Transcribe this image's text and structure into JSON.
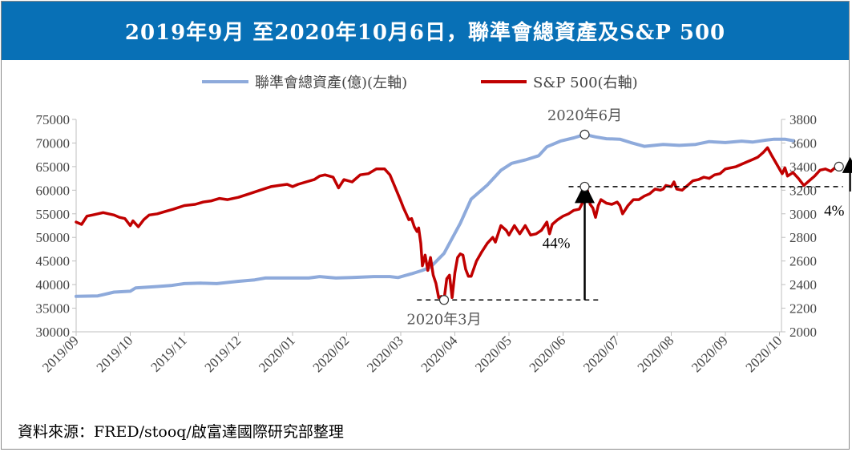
{
  "title": "2019年9月 至2020年10月6日，聯準會總資產及S&P 500",
  "source": "資料來源：FRED/stooq/啟富達國際研究部整理",
  "colors": {
    "title_bg": "#0870b6",
    "fed": "#8eaadb",
    "sp": "#c00000"
  },
  "chart_data": {
    "type": "line",
    "x_tick_labels": [
      "2019/09",
      "2019/10",
      "2019/11",
      "2019/12",
      "2020/01",
      "2020/02",
      "2020/03",
      "2020/04",
      "2020/05",
      "2020/06",
      "2020/07",
      "2020/08",
      "2020/09",
      "2020/10"
    ],
    "y_left": {
      "min": 30000,
      "max": 75000,
      "step": 5000,
      "ticks": [
        "75000",
        "70000",
        "65000",
        "60000",
        "55000",
        "50000",
        "45000",
        "40000",
        "35000",
        "30000"
      ]
    },
    "y_right": {
      "min": 2000,
      "max": 3800,
      "step": 200,
      "ticks": [
        "3800",
        "3600",
        "3400",
        "3200",
        "3000",
        "2800",
        "2600",
        "2400",
        "2200",
        "2000"
      ]
    },
    "legend": [
      "聯準會總資產(億)(左軸)",
      "S&P 500(右軸)"
    ],
    "series": [
      {
        "name": "聯準會總資產(億)(左軸)",
        "axis": "left",
        "points": [
          [
            0,
            37500
          ],
          [
            0.4,
            37600
          ],
          [
            0.7,
            38400
          ],
          [
            1.0,
            38600
          ],
          [
            1.1,
            39300
          ],
          [
            1.5,
            39600
          ],
          [
            1.75,
            39800
          ],
          [
            2.0,
            40200
          ],
          [
            2.3,
            40300
          ],
          [
            2.6,
            40200
          ],
          [
            3.0,
            40700
          ],
          [
            3.3,
            41000
          ],
          [
            3.5,
            41400
          ],
          [
            3.9,
            41400
          ],
          [
            4.3,
            41400
          ],
          [
            4.5,
            41700
          ],
          [
            4.8,
            41400
          ],
          [
            5.1,
            41500
          ],
          [
            5.5,
            41700
          ],
          [
            5.8,
            41700
          ],
          [
            5.95,
            41500
          ],
          [
            6.2,
            42300
          ],
          [
            6.4,
            43000
          ],
          [
            6.55,
            43700
          ],
          [
            6.8,
            46600
          ],
          [
            7.1,
            53000
          ],
          [
            7.3,
            58100
          ],
          [
            7.6,
            61100
          ],
          [
            7.85,
            64200
          ],
          [
            8.05,
            65700
          ],
          [
            8.3,
            66400
          ],
          [
            8.55,
            67300
          ],
          [
            8.7,
            69200
          ],
          [
            8.95,
            70400
          ],
          [
            9.2,
            71100
          ],
          [
            9.4,
            71800
          ],
          [
            9.6,
            71300
          ],
          [
            9.8,
            70900
          ],
          [
            10.05,
            70800
          ],
          [
            10.25,
            70100
          ],
          [
            10.5,
            69300
          ],
          [
            10.85,
            69700
          ],
          [
            11.15,
            69500
          ],
          [
            11.45,
            69700
          ],
          [
            11.7,
            70300
          ],
          [
            12.0,
            70100
          ],
          [
            12.3,
            70400
          ],
          [
            12.5,
            70200
          ],
          [
            12.75,
            70600
          ],
          [
            12.9,
            70800
          ],
          [
            13.1,
            70800
          ],
          [
            13.25,
            70500
          ]
        ]
      },
      {
        "name": "S&P 500(右軸)",
        "axis": "right",
        "points": [
          [
            0,
            2930
          ],
          [
            0.1,
            2910
          ],
          [
            0.2,
            2980
          ],
          [
            0.3,
            2990
          ],
          [
            0.4,
            3000
          ],
          [
            0.5,
            3010
          ],
          [
            0.6,
            3000
          ],
          [
            0.7,
            2990
          ],
          [
            0.8,
            2970
          ],
          [
            0.9,
            2960
          ],
          [
            1.0,
            2900
          ],
          [
            1.05,
            2940
          ],
          [
            1.15,
            2890
          ],
          [
            1.25,
            2950
          ],
          [
            1.35,
            2990
          ],
          [
            1.5,
            3000
          ],
          [
            1.65,
            3020
          ],
          [
            1.8,
            3040
          ],
          [
            2.0,
            3070
          ],
          [
            2.2,
            3080
          ],
          [
            2.35,
            3100
          ],
          [
            2.5,
            3110
          ],
          [
            2.65,
            3130
          ],
          [
            2.8,
            3120
          ],
          [
            3.0,
            3140
          ],
          [
            3.2,
            3170
          ],
          [
            3.4,
            3200
          ],
          [
            3.6,
            3230
          ],
          [
            3.75,
            3240
          ],
          [
            3.9,
            3250
          ],
          [
            4.0,
            3230
          ],
          [
            4.1,
            3250
          ],
          [
            4.25,
            3270
          ],
          [
            4.4,
            3290
          ],
          [
            4.5,
            3320
          ],
          [
            4.6,
            3330
          ],
          [
            4.75,
            3310
          ],
          [
            4.85,
            3220
          ],
          [
            4.95,
            3290
          ],
          [
            5.1,
            3270
          ],
          [
            5.25,
            3330
          ],
          [
            5.4,
            3340
          ],
          [
            5.55,
            3380
          ],
          [
            5.7,
            3380
          ],
          [
            5.8,
            3330
          ],
          [
            5.9,
            3220
          ],
          [
            6.0,
            3110
          ],
          [
            6.05,
            3050
          ],
          [
            6.1,
            3000
          ],
          [
            6.15,
            2950
          ],
          [
            6.2,
            2960
          ],
          [
            6.25,
            2890
          ],
          [
            6.3,
            2850
          ],
          [
            6.33,
            2880
          ],
          [
            6.37,
            2750
          ],
          [
            6.4,
            2560
          ],
          [
            6.45,
            2650
          ],
          [
            6.5,
            2520
          ],
          [
            6.55,
            2630
          ],
          [
            6.6,
            2480
          ],
          [
            6.65,
            2410
          ],
          [
            6.7,
            2290
          ],
          [
            6.75,
            2300
          ],
          [
            6.8,
            2270
          ],
          [
            6.85,
            2450
          ],
          [
            6.9,
            2480
          ],
          [
            6.95,
            2290
          ],
          [
            7.0,
            2500
          ],
          [
            7.05,
            2630
          ],
          [
            7.1,
            2660
          ],
          [
            7.15,
            2650
          ],
          [
            7.2,
            2530
          ],
          [
            7.25,
            2470
          ],
          [
            7.3,
            2470
          ],
          [
            7.4,
            2600
          ],
          [
            7.5,
            2680
          ],
          [
            7.6,
            2750
          ],
          [
            7.7,
            2800
          ],
          [
            7.75,
            2760
          ],
          [
            7.85,
            2900
          ],
          [
            7.95,
            2860
          ],
          [
            8.0,
            2820
          ],
          [
            8.1,
            2900
          ],
          [
            8.2,
            2830
          ],
          [
            8.3,
            2900
          ],
          [
            8.4,
            2820
          ],
          [
            8.5,
            2830
          ],
          [
            8.6,
            2860
          ],
          [
            8.7,
            2930
          ],
          [
            8.75,
            2830
          ],
          [
            8.8,
            2910
          ],
          [
            8.9,
            2950
          ],
          [
            9.0,
            2980
          ],
          [
            9.1,
            3000
          ],
          [
            9.2,
            3030
          ],
          [
            9.3,
            3040
          ],
          [
            9.4,
            3130
          ],
          [
            9.45,
            3200
          ],
          [
            9.5,
            3080
          ],
          [
            9.55,
            3050
          ],
          [
            9.6,
            2970
          ],
          [
            9.65,
            3070
          ],
          [
            9.7,
            3120
          ],
          [
            9.8,
            3090
          ],
          [
            9.9,
            3080
          ],
          [
            10.0,
            3100
          ],
          [
            10.05,
            3070
          ],
          [
            10.1,
            3000
          ],
          [
            10.2,
            3070
          ],
          [
            10.3,
            3120
          ],
          [
            10.4,
            3120
          ],
          [
            10.5,
            3150
          ],
          [
            10.6,
            3170
          ],
          [
            10.7,
            3210
          ],
          [
            10.8,
            3200
          ],
          [
            10.85,
            3210
          ],
          [
            10.9,
            3240
          ],
          [
            11.0,
            3230
          ],
          [
            11.05,
            3270
          ],
          [
            11.1,
            3210
          ],
          [
            11.2,
            3200
          ],
          [
            11.3,
            3240
          ],
          [
            11.4,
            3280
          ],
          [
            11.5,
            3290
          ],
          [
            11.6,
            3310
          ],
          [
            11.7,
            3300
          ],
          [
            11.8,
            3330
          ],
          [
            11.9,
            3340
          ],
          [
            12.0,
            3380
          ],
          [
            12.1,
            3390
          ],
          [
            12.2,
            3400
          ],
          [
            12.3,
            3420
          ],
          [
            12.4,
            3440
          ],
          [
            12.5,
            3460
          ],
          [
            12.6,
            3480
          ],
          [
            12.65,
            3500
          ],
          [
            12.7,
            3520
          ],
          [
            12.78,
            3560
          ],
          [
            12.85,
            3500
          ],
          [
            12.95,
            3420
          ],
          [
            13.05,
            3340
          ],
          [
            13.1,
            3390
          ],
          [
            13.15,
            3320
          ],
          [
            13.25,
            3350
          ],
          [
            13.35,
            3300
          ],
          [
            13.45,
            3240
          ],
          [
            13.55,
            3280
          ],
          [
            13.65,
            3320
          ],
          [
            13.75,
            3370
          ],
          [
            13.85,
            3380
          ],
          [
            13.95,
            3360
          ],
          [
            14.1,
            3420
          ]
        ]
      }
    ],
    "annotations": [
      {
        "text": "2020年6月",
        "at": [
          9.4,
          71800
        ],
        "axis": "left"
      },
      {
        "text": "2020年3月",
        "at": [
          6.8,
          2270
        ],
        "axis": "right"
      },
      {
        "text": "44%",
        "at": [
          9.4,
          2800
        ],
        "axis": "right"
      },
      {
        "text": "4%",
        "at": [
          14.1,
          3080
        ],
        "axis": "right"
      }
    ],
    "reference_levels": {
      "march_low": 2270,
      "june_high": 3230,
      "oct_level": 3400
    }
  }
}
